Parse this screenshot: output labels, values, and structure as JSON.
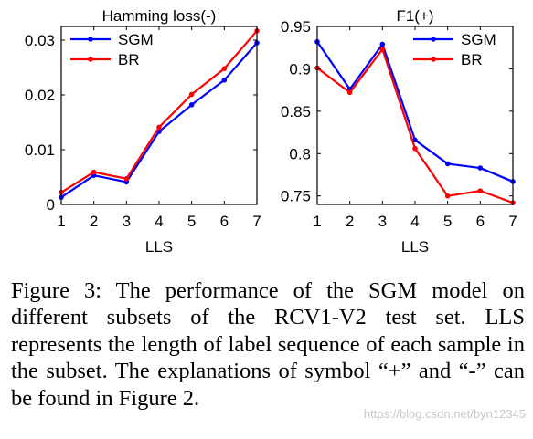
{
  "chart_data": [
    {
      "type": "line",
      "title": "Hamming loss(-)",
      "xlabel": "LLS",
      "ylabel": "",
      "x": [
        1,
        2,
        3,
        4,
        5,
        6,
        7
      ],
      "xticks": [
        "1",
        "2",
        "3",
        "4",
        "5",
        "6",
        "7"
      ],
      "xlim": [
        1,
        7
      ],
      "ylim": [
        0,
        0.0325
      ],
      "yticks": [
        0,
        0.01,
        0.02,
        0.03
      ],
      "ytick_labels": [
        "0",
        "0.01",
        "0.02",
        "0.03"
      ],
      "grid": false,
      "legend": "top-left",
      "series": [
        {
          "name": "SGM",
          "color": "#0000ff",
          "values": [
            0.0013,
            0.0053,
            0.0041,
            0.0133,
            0.0182,
            0.0227,
            0.0295
          ]
        },
        {
          "name": "BR",
          "color": "#ff0000",
          "values": [
            0.0022,
            0.0059,
            0.0047,
            0.0141,
            0.0201,
            0.0248,
            0.0317
          ]
        }
      ]
    },
    {
      "type": "line",
      "title": "F1(+)",
      "xlabel": "LLS",
      "ylabel": "",
      "x": [
        1,
        2,
        3,
        4,
        5,
        6,
        7
      ],
      "xticks": [
        "1",
        "2",
        "3",
        "4",
        "5",
        "6",
        "7"
      ],
      "xlim": [
        1,
        7
      ],
      "ylim": [
        0.74,
        0.95
      ],
      "yticks": [
        0.75,
        0.8,
        0.85,
        0.9,
        0.95
      ],
      "ytick_labels": [
        "0.75",
        "0.8",
        "0.85",
        "0.9",
        "0.95"
      ],
      "grid": false,
      "legend": "top-right",
      "series": [
        {
          "name": "SGM",
          "color": "#0000ff",
          "values": [
            0.932,
            0.876,
            0.929,
            0.816,
            0.788,
            0.783,
            0.767
          ]
        },
        {
          "name": "BR",
          "color": "#ff0000",
          "values": [
            0.901,
            0.872,
            0.923,
            0.806,
            0.75,
            0.756,
            0.742
          ]
        }
      ]
    }
  ],
  "caption": "Figure 3: The performance of the SGM model on different subsets of the RCV1-V2 test set. LLS represents the length of label sequence of each sample in the subset. The explanations of symbol “+” and “-” can be found in Figure 2.",
  "watermark": "https://blog.csdn.net/byn12345"
}
